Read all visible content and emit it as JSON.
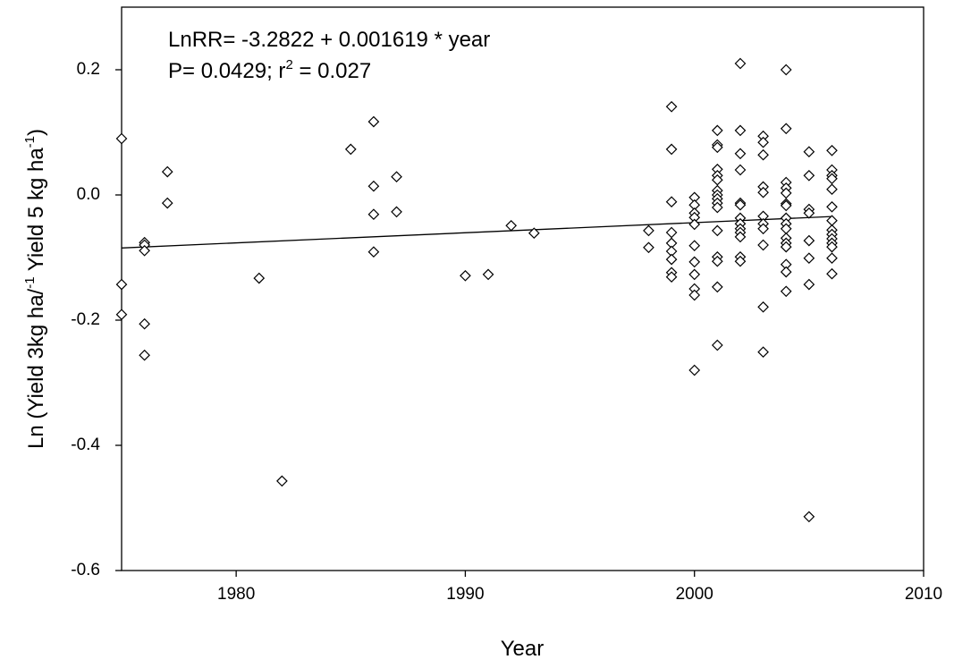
{
  "chart_data": {
    "type": "scatter",
    "annotation_lines": [
      {
        "parts": [
          {
            "text": "LnRR= -3.2822 + 0.001619 * year"
          }
        ]
      },
      {
        "parts": [
          {
            "text": "P= 0.0429; r"
          },
          {
            "text": "2",
            "sup": true
          },
          {
            "text": " = 0.027"
          }
        ]
      }
    ],
    "x_label": "Year",
    "y_label_parts": [
      {
        "text": "Ln (Yield 3kg ha/"
      },
      {
        "text": "-1",
        "sup": true
      },
      {
        "text": " Yield 5 kg ha"
      },
      {
        "text": "-1",
        "sup": true
      },
      {
        "text": ")"
      }
    ],
    "xlim": [
      1975,
      2010
    ],
    "xticks": [
      1980,
      1990,
      2000,
      2010
    ],
    "ylim": [
      -0.6,
      0.3
    ],
    "yticks": [
      {
        "value": -0.6,
        "label": "-0.6"
      },
      {
        "value": -0.4,
        "label": "-0.4"
      },
      {
        "value": -0.2,
        "label": "-0.2"
      },
      {
        "value": 0,
        "label": "0.0"
      },
      {
        "value": 0.2,
        "label": "0.2"
      }
    ],
    "marker_color": "#000000",
    "x": [
      1975,
      1975,
      1975,
      1976,
      1976,
      1976,
      1976,
      1976,
      1977,
      1977,
      1981,
      1982,
      1985,
      1986,
      1986,
      1986,
      1986,
      1987,
      1987,
      1990,
      1991,
      1992,
      1993,
      1998,
      1998,
      1999,
      1999,
      1999,
      1999,
      1999,
      1999,
      1999,
      1999,
      1999,
      2000,
      2000,
      2000,
      2000,
      2000,
      2000,
      2000,
      2000,
      2000,
      2000,
      2000,
      2001,
      2001,
      2001,
      2001,
      2001,
      2001,
      2001,
      2001,
      2001,
      2001,
      2001,
      2001,
      2001,
      2001,
      2001,
      2001,
      2002,
      2002,
      2002,
      2002,
      2002,
      2002,
      2002,
      2002,
      2002,
      2002,
      2002,
      2002,
      2002,
      2003,
      2003,
      2003,
      2003,
      2003,
      2003,
      2003,
      2003,
      2003,
      2003,
      2003,
      2004,
      2004,
      2004,
      2004,
      2004,
      2004,
      2004,
      2004,
      2004,
      2004,
      2004,
      2004,
      2004,
      2004,
      2004,
      2004,
      2005,
      2005,
      2005,
      2005,
      2005,
      2005,
      2005,
      2005,
      2006,
      2006,
      2006,
      2006,
      2006,
      2006,
      2006,
      2006,
      2006,
      2006,
      2006,
      2006,
      2006,
      2006
    ],
    "values": [
      0.09,
      -0.143,
      -0.191,
      -0.076,
      -0.08,
      -0.089,
      -0.206,
      -0.256,
      0.037,
      -0.013,
      -0.133,
      -0.457,
      0.073,
      0.117,
      0.014,
      -0.031,
      -0.091,
      0.029,
      -0.027,
      -0.129,
      -0.127,
      -0.049,
      -0.061,
      -0.057,
      -0.084,
      0.141,
      0.073,
      -0.011,
      -0.06,
      -0.077,
      -0.09,
      -0.103,
      -0.124,
      -0.131,
      -0.004,
      -0.016,
      -0.029,
      -0.036,
      -0.047,
      -0.081,
      -0.107,
      -0.127,
      -0.15,
      -0.16,
      -0.28,
      0.103,
      0.08,
      0.076,
      0.041,
      0.031,
      0.024,
      0.007,
      0,
      -0.006,
      -0.013,
      -0.02,
      -0.057,
      -0.099,
      -0.106,
      -0.147,
      -0.24,
      0.21,
      0.103,
      0.066,
      0.04,
      -0.013,
      -0.016,
      -0.037,
      -0.046,
      -0.054,
      -0.06,
      -0.067,
      -0.099,
      -0.106,
      0.094,
      0.084,
      0.064,
      0.013,
      0.004,
      -0.034,
      -0.046,
      -0.054,
      -0.08,
      -0.179,
      -0.251,
      0.2,
      0.106,
      0.02,
      0.011,
      0.003,
      -0.014,
      -0.017,
      -0.037,
      -0.046,
      -0.054,
      -0.069,
      -0.077,
      -0.083,
      -0.111,
      -0.123,
      -0.154,
      0.069,
      0.031,
      -0.023,
      -0.029,
      -0.073,
      -0.101,
      -0.143,
      -0.514,
      0.071,
      0.04,
      0.031,
      0.026,
      0.009,
      -0.019,
      -0.041,
      -0.056,
      -0.063,
      -0.07,
      -0.077,
      -0.083,
      -0.101,
      -0.126
    ],
    "trend": {
      "x": [
        1975,
        2006
      ],
      "values": [
        -0.0847,
        -0.0345
      ],
      "color": "#000000"
    }
  }
}
